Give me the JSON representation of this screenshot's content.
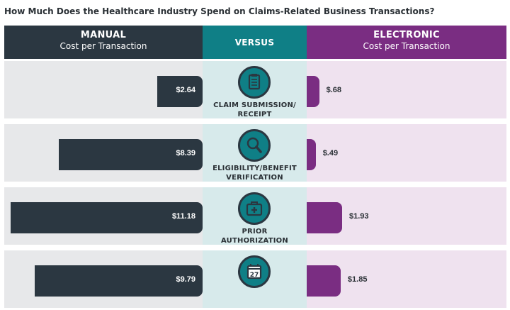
{
  "title": "How Much Does the Healthcare Industry Spend on Claims-Related Business Transactions?",
  "header": {
    "manual_title": "MANUAL",
    "manual_sub": "Cost per Transaction",
    "versus": "VERSUS",
    "electronic_title": "ELECTRONIC",
    "electronic_sub": "Cost per Transaction"
  },
  "colors": {
    "manual": "#2b3741",
    "versus": "#0f7f86",
    "electronic": "#7a2d82"
  },
  "chart_data": {
    "type": "bar",
    "categories": [
      "CLAIM SUBMISSION/ RECEIPT",
      "ELIGIBILITY/BENEFIT VERIFICATION",
      "PRIOR AUTHORIZATION",
      ""
    ],
    "category_lines": [
      [
        "CLAIM SUBMISSION/",
        "RECEIPT"
      ],
      [
        "ELIGIBILITY/BENEFIT",
        "VERIFICATION"
      ],
      [
        "PRIOR",
        "AUTHORIZATION"
      ],
      [
        "",
        ""
      ]
    ],
    "icons": [
      "clipboard-icon",
      "magnifier-icon",
      "medical-bag-icon",
      "calendar-icon"
    ],
    "series": [
      {
        "name": "MANUAL",
        "values": [
          2.64,
          8.39,
          11.18,
          9.79
        ],
        "labels": [
          "$2.64",
          "$8.39",
          "$11.18",
          "$9.79"
        ]
      },
      {
        "name": "ELECTRONIC",
        "values": [
          0.68,
          0.49,
          1.93,
          1.85
        ],
        "labels": [
          "$.68",
          "$.49",
          "$1.93",
          "$1.85"
        ]
      }
    ],
    "calendar_day": "27"
  }
}
